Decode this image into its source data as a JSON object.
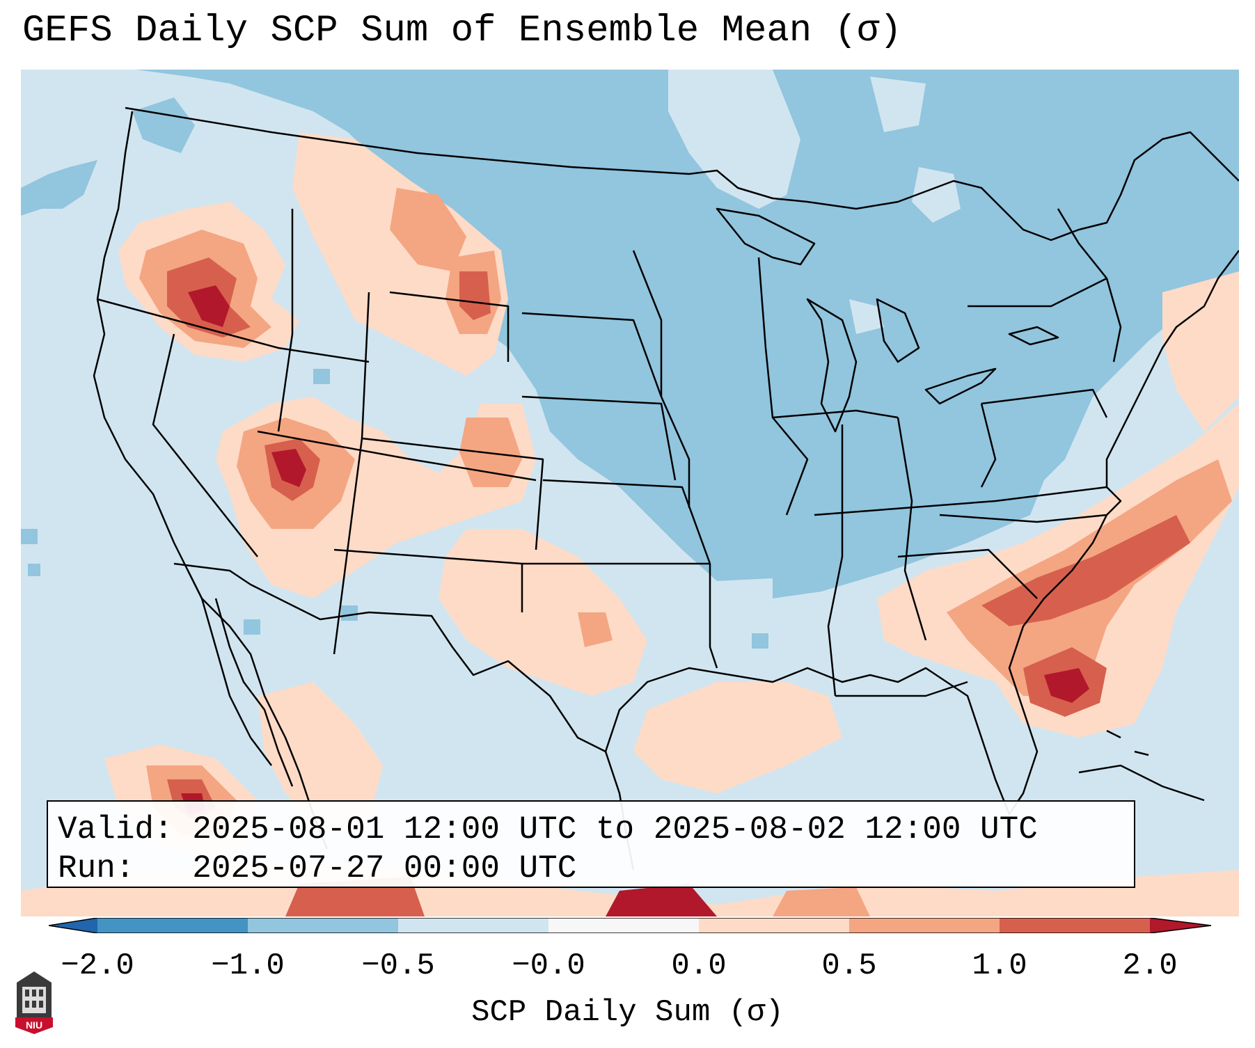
{
  "title": "GEFS Daily SCP Sum of Ensemble Mean (σ)",
  "info": {
    "valid_label": "Valid:",
    "valid_range": "2025-08-01 12:00 UTC to 2025-08-02 12:00 UTC",
    "run_label": "Run:",
    "run_time": "2025-07-27 00:00 UTC"
  },
  "colorbar": {
    "label": "SCP Daily Sum (σ)",
    "ticks": [
      "−2.0",
      "−1.0",
      "−0.5",
      "−0.0",
      "0.0",
      "0.5",
      "1.0",
      "2.0"
    ],
    "colors": [
      "#4393c3",
      "#92c5de",
      "#d1e5f0",
      "#f7f7f7",
      "#fddbc7",
      "#f4a582",
      "#d6604d",
      "#b2182b"
    ]
  },
  "logo": {
    "text": "NIU"
  },
  "map": {
    "background_color": "#d1e5f0",
    "region": "Contiguous United States",
    "legend_bins": [
      {
        "range": "< -2.0",
        "color": "#2166ac"
      },
      {
        "range": "-2.0 to -1.0",
        "color": "#4393c3"
      },
      {
        "range": "-1.0 to -0.5",
        "color": "#92c5de"
      },
      {
        "range": "-0.5 to 0.0",
        "color": "#d1e5f0"
      },
      {
        "range": "0.0 to 0.5",
        "color": "#fddbc7"
      },
      {
        "range": "0.5 to 1.0",
        "color": "#f4a582"
      },
      {
        "range": "1.0 to 2.0",
        "color": "#d6604d"
      },
      {
        "range": "> 2.0",
        "color": "#b2182b"
      }
    ]
  }
}
